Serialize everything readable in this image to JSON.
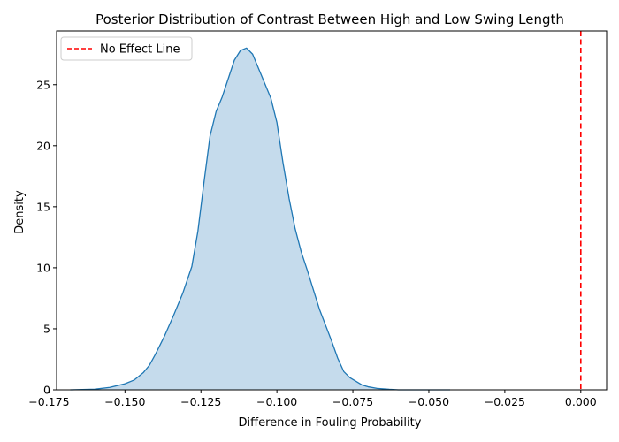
{
  "chart_data": {
    "type": "area",
    "title": "Posterior Distribution of Contrast Between High and Low Swing Length",
    "xlabel": "Difference in Fouling Probability",
    "ylabel": "Density",
    "xlim": [
      -0.1725,
      0.0085
    ],
    "ylim": [
      0,
      29.4
    ],
    "xticks": [
      -0.175,
      -0.15,
      -0.125,
      -0.1,
      -0.075,
      -0.05,
      -0.025,
      0.0
    ],
    "xtick_labels": [
      "−0.175",
      "−0.150",
      "−0.125",
      "−0.100",
      "−0.075",
      "−0.050",
      "−0.025",
      "0.000"
    ],
    "yticks": [
      0,
      5,
      10,
      15,
      20,
      25
    ],
    "ytick_labels": [
      "0",
      "5",
      "10",
      "15",
      "20",
      "25"
    ],
    "grid": false,
    "series": [
      {
        "type": "kde",
        "line_color": "#1f77b4",
        "fill_color": "#c5dbec",
        "x": [
          -0.168,
          -0.16,
          -0.155,
          -0.15,
          -0.147,
          -0.144,
          -0.142,
          -0.14,
          -0.137,
          -0.134,
          -0.131,
          -0.128,
          -0.126,
          -0.124,
          -0.122,
          -0.12,
          -0.118,
          -0.116,
          -0.114,
          -0.112,
          -0.11,
          -0.108,
          -0.106,
          -0.104,
          -0.102,
          -0.1,
          -0.098,
          -0.096,
          -0.094,
          -0.092,
          -0.09,
          -0.088,
          -0.086,
          -0.084,
          -0.082,
          -0.08,
          -0.078,
          -0.076,
          -0.074,
          -0.072,
          -0.07,
          -0.067,
          -0.063,
          -0.06,
          -0.055,
          -0.05,
          -0.043
        ],
        "y": [
          0.0,
          0.05,
          0.2,
          0.5,
          0.8,
          1.4,
          2.0,
          2.9,
          4.4,
          6.1,
          7.9,
          10.1,
          13.0,
          17.0,
          20.8,
          22.8,
          24.0,
          25.5,
          27.0,
          27.8,
          28.0,
          27.5,
          26.3,
          25.1,
          23.9,
          21.9,
          18.6,
          15.7,
          13.2,
          11.3,
          9.8,
          8.2,
          6.6,
          5.3,
          4.0,
          2.6,
          1.5,
          1.0,
          0.7,
          0.4,
          0.25,
          0.12,
          0.04,
          0.0,
          0.0,
          0.0,
          0.0
        ]
      }
    ],
    "reference_line": {
      "x": 0.0,
      "color": "#ff0000",
      "style": "dashed",
      "label": "No Effect Line"
    },
    "legend": {
      "placement": "top-left",
      "entries": [
        "No Effect Line"
      ]
    }
  }
}
